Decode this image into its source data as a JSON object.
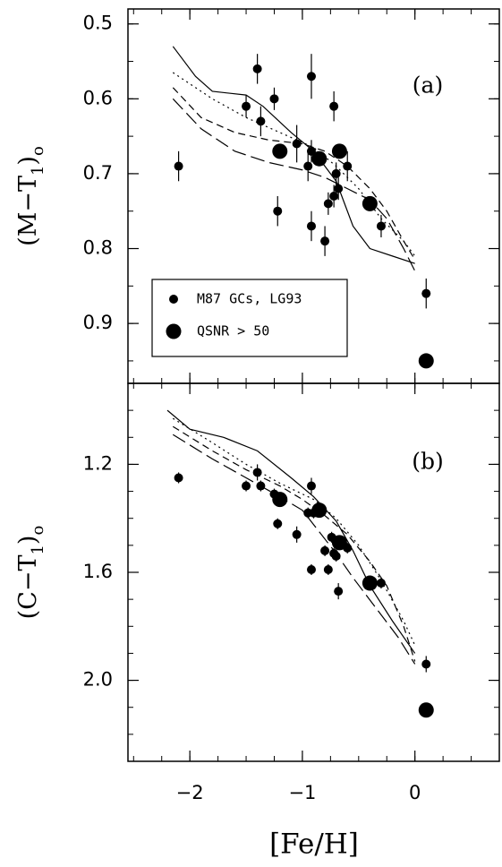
{
  "chart_data": [
    {
      "type": "scatter",
      "annotation": "(a)",
      "ylabel": [
        "(M−T",
        "1",
        ")",
        "o"
      ],
      "xlim": [
        -2.55,
        0.75
      ],
      "ylim": [
        0.48,
        0.98
      ],
      "y_inverted": true,
      "yticks": [
        0.5,
        0.6,
        0.7,
        0.8,
        0.9
      ],
      "y_minor_per_major": 2,
      "x_minor_per_major": 4,
      "legend": "lower left",
      "series": [
        {
          "name": "M87 GCs, LG93",
          "marker": "small",
          "color": "#000",
          "x": [
            -2.1,
            -1.5,
            -1.4,
            -1.37,
            -1.25,
            -1.22,
            -1.05,
            -0.95,
            -0.92,
            -0.92,
            -0.92,
            -0.8,
            -0.77,
            -0.72,
            -0.72,
            -0.7,
            -0.68,
            -0.6,
            -0.3,
            0.1
          ],
          "values": [
            0.69,
            0.61,
            0.56,
            0.63,
            0.6,
            0.75,
            0.66,
            0.69,
            0.57,
            0.67,
            0.77,
            0.79,
            0.74,
            0.61,
            0.73,
            0.7,
            0.72,
            0.69,
            0.77,
            0.86
          ],
          "errors": [
            0.02,
            0.015,
            0.02,
            0.02,
            0.015,
            0.02,
            0.025,
            0.02,
            0.03,
            0.015,
            0.02,
            0.02,
            0.015,
            0.02,
            0.015,
            0.015,
            0.015,
            0.02,
            0.015,
            0.02
          ]
        },
        {
          "name": "QSNR > 50",
          "marker": "large",
          "color": "#000",
          "x": [
            -1.2,
            -0.85,
            -0.67,
            -0.4,
            0.1
          ],
          "values": [
            0.67,
            0.68,
            0.67,
            0.74,
            0.95
          ]
        },
        {
          "marker": "none",
          "dash": "solid",
          "color": "#000",
          "x": [
            -2.15,
            -1.95,
            -1.8,
            -1.5,
            -1.35,
            -1.1,
            -0.9,
            -0.7,
            -0.55,
            -0.4,
            -0.2,
            0
          ],
          "values": [
            0.53,
            0.57,
            0.59,
            0.595,
            0.61,
            0.645,
            0.67,
            0.71,
            0.77,
            0.8,
            0.81,
            0.82
          ]
        },
        {
          "marker": "none",
          "dash": "dotted",
          "color": "#000",
          "x": [
            -2.15,
            -1.8,
            -1.5,
            -1.2,
            -0.9,
            -0.7,
            -0.5,
            -0.3,
            -0.1,
            0
          ],
          "values": [
            0.565,
            0.6,
            0.625,
            0.645,
            0.665,
            0.69,
            0.72,
            0.76,
            0.79,
            0.81
          ]
        },
        {
          "marker": "none",
          "dash": "short",
          "color": "#000",
          "x": [
            -2.15,
            -1.9,
            -1.6,
            -1.3,
            -1.0,
            -0.8,
            -0.6,
            -0.4,
            -0.25,
            -0.1,
            0
          ],
          "values": [
            0.585,
            0.625,
            0.645,
            0.655,
            0.66,
            0.67,
            0.69,
            0.72,
            0.75,
            0.79,
            0.815
          ]
        },
        {
          "marker": "none",
          "dash": "long",
          "color": "#000",
          "x": [
            -2.15,
            -1.9,
            -1.6,
            -1.3,
            -1.0,
            -0.8,
            -0.6,
            -0.4,
            -0.25,
            -0.1,
            0
          ],
          "values": [
            0.6,
            0.64,
            0.67,
            0.685,
            0.695,
            0.705,
            0.72,
            0.735,
            0.76,
            0.8,
            0.83
          ]
        }
      ]
    },
    {
      "type": "scatter",
      "annotation": "(b)",
      "ylabel": [
        "(C−T",
        "1",
        ")",
        "o"
      ],
      "xlabel": "[Fe/H]",
      "xlim": [
        -2.55,
        0.75
      ],
      "ylim": [
        0.9,
        2.3
      ],
      "y_inverted": true,
      "xticks": [
        {
          "value": -2,
          "label": "−2"
        },
        {
          "value": -1,
          "label": "−1"
        },
        0
      ],
      "yticks": [
        1.2,
        1.6,
        {
          "value": 2,
          "label": "2.0"
        }
      ],
      "y_minor_per_major": 4,
      "x_minor_per_major": 4,
      "series": [
        {
          "marker": "small",
          "color": "#000",
          "x": [
            -2.1,
            -1.5,
            -1.4,
            -1.37,
            -1.25,
            -1.22,
            -1.05,
            -0.95,
            -0.92,
            -0.92,
            -0.9,
            -0.8,
            -0.77,
            -0.74,
            -0.72,
            -0.7,
            -0.68,
            -0.6,
            -0.3,
            0.1
          ],
          "values": [
            1.25,
            1.28,
            1.23,
            1.28,
            1.31,
            1.42,
            1.46,
            1.38,
            1.28,
            1.59,
            1.38,
            1.52,
            1.59,
            1.47,
            1.53,
            1.54,
            1.67,
            1.51,
            1.64,
            1.94
          ],
          "errors": [
            0.02,
            0.02,
            0.03,
            0.02,
            0.02,
            0.02,
            0.03,
            0.02,
            0.03,
            0.02,
            0.02,
            0.02,
            0.02,
            0.02,
            0.02,
            0.02,
            0.03,
            0.02,
            0.02,
            0.03
          ]
        },
        {
          "marker": "large",
          "color": "#000",
          "x": [
            -1.2,
            -0.85,
            -0.67,
            -0.4,
            0.1
          ],
          "values": [
            1.33,
            1.37,
            1.49,
            1.64,
            2.11
          ]
        },
        {
          "marker": "none",
          "dash": "solid",
          "color": "#000",
          "x": [
            -2.2,
            -2.0,
            -1.7,
            -1.4,
            -1.1,
            -0.9,
            -0.7,
            -0.55,
            -0.4,
            -0.2,
            0
          ],
          "values": [
            1.0,
            1.07,
            1.1,
            1.15,
            1.25,
            1.32,
            1.41,
            1.52,
            1.65,
            1.78,
            1.9
          ]
        },
        {
          "marker": "none",
          "dash": "dotted",
          "color": "#000",
          "x": [
            -2.15,
            -1.8,
            -1.5,
            -1.2,
            -0.9,
            -0.7,
            -0.5,
            -0.3,
            -0.1,
            0
          ],
          "values": [
            1.03,
            1.12,
            1.2,
            1.27,
            1.33,
            1.4,
            1.5,
            1.63,
            1.78,
            1.87
          ]
        },
        {
          "marker": "none",
          "dash": "short",
          "color": "#000",
          "x": [
            -2.15,
            -1.8,
            -1.5,
            -1.2,
            -1.0,
            -0.8,
            -0.6,
            -0.4,
            -0.25,
            -0.1,
            0
          ],
          "values": [
            1.06,
            1.15,
            1.22,
            1.28,
            1.33,
            1.39,
            1.46,
            1.56,
            1.65,
            1.8,
            1.93
          ]
        },
        {
          "marker": "none",
          "dash": "long",
          "color": "#000",
          "x": [
            -2.15,
            -1.8,
            -1.5,
            -1.2,
            -1.0,
            -0.85,
            -0.7,
            -0.55,
            -0.35,
            -0.15,
            0
          ],
          "values": [
            1.09,
            1.18,
            1.25,
            1.32,
            1.37,
            1.45,
            1.53,
            1.62,
            1.73,
            1.84,
            1.94
          ]
        }
      ]
    }
  ]
}
